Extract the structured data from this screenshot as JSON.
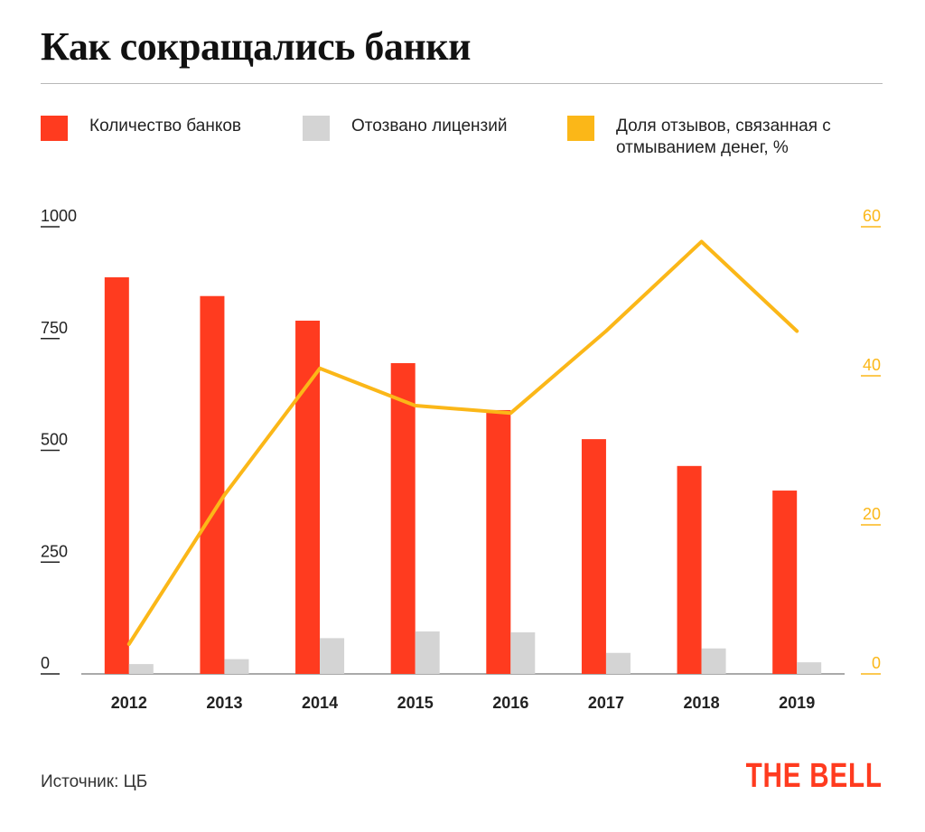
{
  "title": "Как сокращались банки",
  "legend": [
    {
      "label": "Количество банков",
      "color": "#ff3b1f"
    },
    {
      "label": "Отозвано лицензий",
      "color": "#d4d4d4"
    },
    {
      "label": "Доля отзывов, связанная с отмыванием денег, %",
      "color": "#fbb718"
    }
  ],
  "source": "Источник: ЦБ",
  "brand": {
    "text": "THE BELL",
    "color": "#ff3b1f"
  },
  "chart_data": {
    "type": "bar",
    "categories": [
      "2012",
      "2013",
      "2014",
      "2015",
      "2016",
      "2017",
      "2018",
      "2019"
    ],
    "series": [
      {
        "name": "Количество банков",
        "type": "bar",
        "axis": "left",
        "color": "#ff3b1f",
        "values": [
          887,
          845,
          790,
          695,
          590,
          525,
          465,
          410
        ]
      },
      {
        "name": "Отозвано лицензий",
        "type": "bar",
        "axis": "left",
        "color": "#d4d4d4",
        "values": [
          22,
          33,
          80,
          95,
          93,
          47,
          57,
          26
        ]
      },
      {
        "name": "Доля отзывов, связанная с отмыванием денег, %",
        "type": "line",
        "axis": "right",
        "color": "#fbb718",
        "values": [
          4,
          24,
          41,
          36,
          35,
          46,
          58,
          46
        ]
      }
    ],
    "y_left": {
      "range": [
        0,
        1000
      ],
      "ticks": [
        0,
        250,
        500,
        750,
        1000
      ]
    },
    "y_right": {
      "range": [
        0,
        60
      ],
      "ticks": [
        0,
        20,
        40,
        60
      ],
      "color": "#fbb718"
    },
    "grid": false
  }
}
